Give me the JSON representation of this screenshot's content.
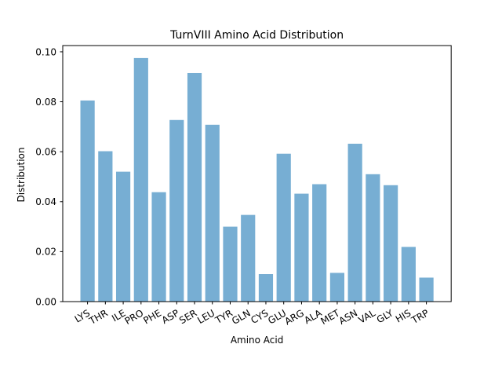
{
  "chart_data": {
    "type": "bar",
    "title": "TurnVIII Amino Acid Distribution",
    "xlabel": "Amino Acid",
    "ylabel": "Distribution",
    "categories": [
      "LYS",
      "THR",
      "ILE",
      "PRO",
      "PHE",
      "ASP",
      "SER",
      "LEU",
      "TYR",
      "GLN",
      "CYS",
      "GLU",
      "ARG",
      "ALA",
      "MET",
      "ASN",
      "VAL",
      "GLY",
      "HIS",
      "TRP"
    ],
    "values": [
      0.0805,
      0.0602,
      0.052,
      0.0975,
      0.0438,
      0.0727,
      0.0915,
      0.0708,
      0.03,
      0.0347,
      0.011,
      0.0592,
      0.0432,
      0.047,
      0.0115,
      0.0632,
      0.051,
      0.0466,
      0.0219,
      0.0096
    ],
    "yticks": [
      "0.00",
      "0.02",
      "0.04",
      "0.06",
      "0.08",
      "0.10"
    ],
    "ylim": [
      0,
      0.1025
    ],
    "grid": false,
    "bar_color": "#77aed3",
    "x_tick_rotation_deg": 30
  }
}
